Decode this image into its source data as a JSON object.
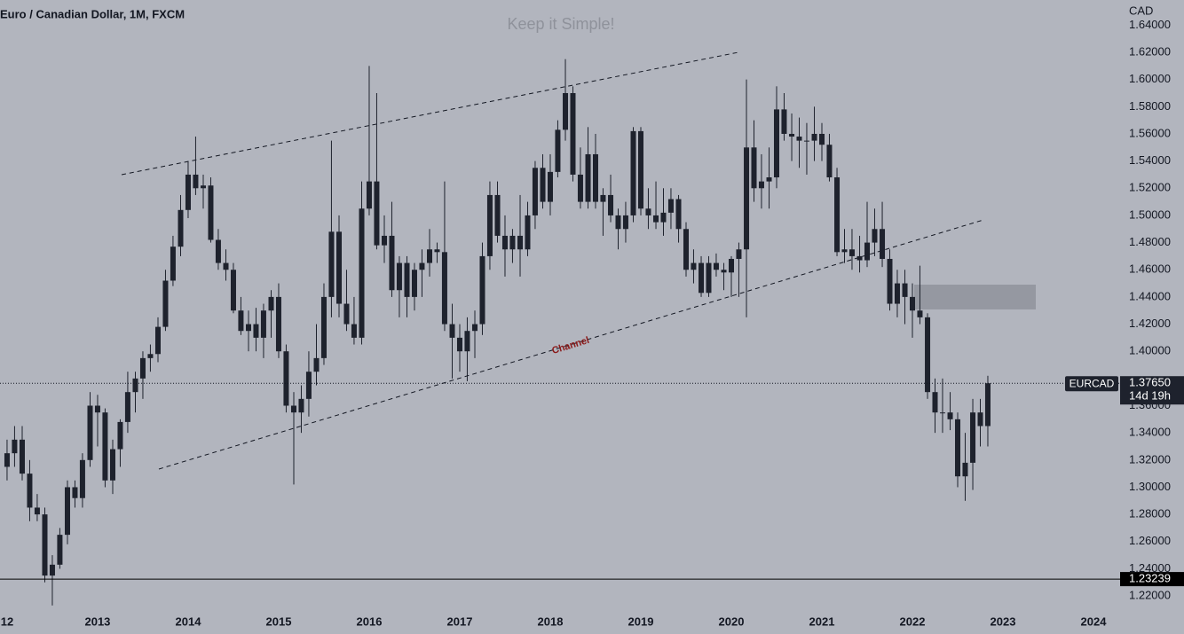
{
  "chart_data": {
    "type": "candlestick",
    "title": "Euro / Canadian Dollar, 1M, FXCM",
    "watermark": "Keep it Simple!",
    "currency": "CAD",
    "annotation": "Channel",
    "color": "#1e222d",
    "x": [
      2012,
      2012.083,
      2012.167,
      2012.25,
      2012.333,
      2012.417,
      2012.5,
      2012.583,
      2012.667,
      2012.75,
      2012.833,
      2012.917,
      2013,
      2013.083,
      2013.167,
      2013.25,
      2013.333,
      2013.417,
      2013.5,
      2013.583,
      2013.667,
      2013.75,
      2013.833,
      2013.917,
      2014,
      2014.083,
      2014.167,
      2014.25,
      2014.333,
      2014.417,
      2014.5,
      2014.583,
      2014.667,
      2014.75,
      2014.833,
      2014.917,
      2015,
      2015.083,
      2015.167,
      2015.25,
      2015.333,
      2015.417,
      2015.5,
      2015.583,
      2015.667,
      2015.75,
      2015.833,
      2015.917,
      2016,
      2016.083,
      2016.167,
      2016.25,
      2016.333,
      2016.417,
      2016.5,
      2016.583,
      2016.667,
      2016.75,
      2016.833,
      2016.917,
      2017,
      2017.083,
      2017.167,
      2017.25,
      2017.333,
      2017.417,
      2017.5,
      2017.583,
      2017.667,
      2017.75,
      2017.833,
      2017.917,
      2018,
      2018.083,
      2018.167,
      2018.25,
      2018.333,
      2018.417,
      2018.5,
      2018.583,
      2018.667,
      2018.75,
      2018.833,
      2018.917,
      2019,
      2019.083,
      2019.167,
      2019.25,
      2019.333,
      2019.417,
      2019.5,
      2019.583,
      2019.667,
      2019.75,
      2019.833,
      2019.917,
      2020,
      2020.083,
      2020.167,
      2020.25,
      2020.333,
      2020.417,
      2020.5,
      2020.583,
      2020.667,
      2020.75,
      2020.833,
      2020.917,
      2021,
      2021.083,
      2021.167,
      2021.25,
      2021.333,
      2021.417,
      2021.5,
      2021.583,
      2021.667,
      2021.75,
      2021.833,
      2021.917,
      2022,
      2022.083,
      2022.167,
      2022.25,
      2022.333,
      2022.417,
      2022.5,
      2022.583,
      2022.667,
      2022.75,
      2022.833
    ],
    "open": [
      1.315,
      1.325,
      1.335,
      1.31,
      1.285,
      1.28,
      1.235,
      1.243,
      1.265,
      1.3,
      1.292,
      1.32,
      1.36,
      1.355,
      1.305,
      1.328,
      1.348,
      1.37,
      1.38,
      1.395,
      1.398,
      1.418,
      1.452,
      1.477,
      1.504,
      1.53,
      1.52,
      1.522,
      1.482,
      1.465,
      1.46,
      1.43,
      1.415,
      1.42,
      1.41,
      1.43,
      1.44,
      1.4,
      1.36,
      1.355,
      1.365,
      1.385,
      1.395,
      1.44,
      1.488,
      1.435,
      1.42,
      1.41,
      1.505,
      1.525,
      1.478,
      1.485,
      1.445,
      1.465,
      1.44,
      1.46,
      1.465,
      1.475,
      1.473,
      1.42,
      1.41,
      1.4,
      1.415,
      1.42,
      1.47,
      1.515,
      1.485,
      1.475,
      1.485,
      1.475,
      1.5,
      1.535,
      1.51,
      1.532,
      1.563,
      1.59,
      1.53,
      1.51,
      1.545,
      1.51,
      1.515,
      1.5,
      1.49,
      1.5,
      1.562,
      1.505,
      1.5,
      1.495,
      1.502,
      1.512,
      1.49,
      1.46,
      1.465,
      1.443,
      1.465,
      1.46,
      1.458,
      1.468,
      1.475,
      1.55,
      1.52,
      1.525,
      1.528,
      1.578,
      1.56,
      1.558,
      1.555,
      1.555,
      1.56,
      1.552,
      1.528,
      1.473,
      1.475,
      1.47,
      1.467,
      1.48,
      1.49,
      1.468,
      1.435,
      1.45,
      1.44,
      1.43,
      1.425,
      1.37,
      1.355,
      1.355,
      1.35,
      1.308,
      1.318,
      1.355,
      1.345
    ],
    "high": [
      1.335,
      1.345,
      1.345,
      1.32,
      1.295,
      1.285,
      1.25,
      1.27,
      1.305,
      1.305,
      1.325,
      1.37,
      1.368,
      1.358,
      1.335,
      1.35,
      1.385,
      1.385,
      1.4,
      1.405,
      1.425,
      1.46,
      1.485,
      1.515,
      1.54,
      1.558,
      1.53,
      1.528,
      1.49,
      1.475,
      1.465,
      1.44,
      1.43,
      1.432,
      1.435,
      1.445,
      1.45,
      1.405,
      1.37,
      1.375,
      1.4,
      1.42,
      1.45,
      1.555,
      1.5,
      1.46,
      1.44,
      1.525,
      1.61,
      1.59,
      1.5,
      1.51,
      1.47,
      1.47,
      1.465,
      1.475,
      1.49,
      1.48,
      1.525,
      1.435,
      1.42,
      1.425,
      1.43,
      1.48,
      1.525,
      1.525,
      1.5,
      1.49,
      1.515,
      1.51,
      1.54,
      1.545,
      1.545,
      1.57,
      1.615,
      1.595,
      1.55,
      1.565,
      1.56,
      1.52,
      1.53,
      1.505,
      1.51,
      1.565,
      1.565,
      1.52,
      1.525,
      1.52,
      1.52,
      1.515,
      1.495,
      1.475,
      1.47,
      1.47,
      1.472,
      1.465,
      1.47,
      1.48,
      1.6,
      1.57,
      1.545,
      1.55,
      1.595,
      1.59,
      1.575,
      1.572,
      1.568,
      1.58,
      1.568,
      1.56,
      1.535,
      1.49,
      1.49,
      1.485,
      1.51,
      1.505,
      1.51,
      1.475,
      1.46,
      1.46,
      1.45,
      1.463,
      1.428,
      1.38,
      1.38,
      1.37,
      1.355,
      1.34,
      1.365,
      1.365,
      1.382
    ],
    "low": [
      1.305,
      1.315,
      1.305,
      1.275,
      1.275,
      1.23,
      1.213,
      1.24,
      1.258,
      1.285,
      1.285,
      1.315,
      1.33,
      1.3,
      1.295,
      1.315,
      1.34,
      1.355,
      1.365,
      1.385,
      1.392,
      1.415,
      1.448,
      1.47,
      1.498,
      1.515,
      1.505,
      1.48,
      1.46,
      1.452,
      1.428,
      1.412,
      1.4,
      1.4,
      1.395,
      1.41,
      1.395,
      1.355,
      1.302,
      1.34,
      1.352,
      1.375,
      1.39,
      1.425,
      1.425,
      1.415,
      1.405,
      1.405,
      1.5,
      1.475,
      1.465,
      1.44,
      1.425,
      1.425,
      1.43,
      1.44,
      1.455,
      1.465,
      1.415,
      1.38,
      1.385,
      1.378,
      1.395,
      1.412,
      1.46,
      1.48,
      1.455,
      1.465,
      1.455,
      1.47,
      1.49,
      1.505,
      1.5,
      1.528,
      1.555,
      1.525,
      1.505,
      1.505,
      1.505,
      1.485,
      1.495,
      1.475,
      1.48,
      1.495,
      1.5,
      1.49,
      1.49,
      1.485,
      1.49,
      1.48,
      1.455,
      1.45,
      1.44,
      1.44,
      1.455,
      1.445,
      1.44,
      1.44,
      1.425,
      1.51,
      1.505,
      1.505,
      1.52,
      1.555,
      1.54,
      1.535,
      1.53,
      1.54,
      1.54,
      1.525,
      1.47,
      1.465,
      1.46,
      1.458,
      1.462,
      1.47,
      1.462,
      1.43,
      1.425,
      1.42,
      1.41,
      1.42,
      1.365,
      1.34,
      1.34,
      1.342,
      1.3,
      1.29,
      1.298,
      1.33,
      1.33
    ],
    "close": [
      1.325,
      1.335,
      1.31,
      1.285,
      1.28,
      1.235,
      1.243,
      1.265,
      1.3,
      1.292,
      1.32,
      1.36,
      1.355,
      1.305,
      1.328,
      1.348,
      1.37,
      1.38,
      1.395,
      1.398,
      1.418,
      1.452,
      1.477,
      1.504,
      1.53,
      1.52,
      1.522,
      1.482,
      1.465,
      1.46,
      1.43,
      1.415,
      1.42,
      1.41,
      1.43,
      1.44,
      1.4,
      1.36,
      1.355,
      1.365,
      1.385,
      1.395,
      1.44,
      1.488,
      1.435,
      1.42,
      1.41,
      1.505,
      1.525,
      1.478,
      1.485,
      1.445,
      1.465,
      1.44,
      1.46,
      1.465,
      1.475,
      1.473,
      1.42,
      1.41,
      1.4,
      1.415,
      1.42,
      1.47,
      1.515,
      1.485,
      1.475,
      1.485,
      1.475,
      1.5,
      1.535,
      1.51,
      1.532,
      1.563,
      1.59,
      1.53,
      1.51,
      1.545,
      1.51,
      1.515,
      1.5,
      1.49,
      1.5,
      1.562,
      1.505,
      1.5,
      1.495,
      1.502,
      1.512,
      1.49,
      1.46,
      1.465,
      1.443,
      1.465,
      1.46,
      1.458,
      1.468,
      1.475,
      1.55,
      1.52,
      1.525,
      1.528,
      1.578,
      1.56,
      1.558,
      1.555,
      1.555,
      1.56,
      1.552,
      1.528,
      1.473,
      1.475,
      1.47,
      1.467,
      1.48,
      1.49,
      1.468,
      1.435,
      1.45,
      1.44,
      1.43,
      1.425,
      1.37,
      1.355,
      1.355,
      1.35,
      1.308,
      1.318,
      1.355,
      1.345,
      1.3765
    ],
    "xlim": [
      2011.922,
      2024.294
    ],
    "xticks": [
      {
        "value": 2012,
        "label": "12"
      },
      2013,
      2014,
      2015,
      2016,
      2017,
      2018,
      2019,
      2020,
      2021,
      2022,
      2023,
      2024
    ],
    "ylim": [
      1.192,
      1.6585
    ],
    "yticks": [
      {
        "value": 1.22,
        "label": "1.22000"
      },
      {
        "value": 1.24,
        "label": "1.24000"
      },
      {
        "value": 1.26,
        "label": "1.26000"
      },
      {
        "value": 1.28,
        "label": "1.28000"
      },
      {
        "value": 1.3,
        "label": "1.30000"
      },
      {
        "value": 1.32,
        "label": "1.32000"
      },
      {
        "value": 1.34,
        "label": "1.34000"
      },
      {
        "value": 1.36,
        "label": "1.36000"
      },
      {
        "value": 1.38,
        "label": "1.38000"
      },
      {
        "value": 1.4,
        "label": "1.40000"
      },
      {
        "value": 1.42,
        "label": "1.42000"
      },
      {
        "value": 1.44,
        "label": "1.44000"
      },
      {
        "value": 1.46,
        "label": "1.46000"
      },
      {
        "value": 1.48,
        "label": "1.48000"
      },
      {
        "value": 1.5,
        "label": "1.50000"
      },
      {
        "value": 1.52,
        "label": "1.52000"
      },
      {
        "value": 1.54,
        "label": "1.54000"
      },
      {
        "value": 1.56,
        "label": "1.56000"
      },
      {
        "value": 1.58,
        "label": "1.58000"
      },
      {
        "value": 1.6,
        "label": "1.60000"
      },
      {
        "value": 1.62,
        "label": "1.62000"
      },
      {
        "value": 1.64,
        "label": "1.64000"
      }
    ],
    "grid": false,
    "last_price": {
      "symbol": "EURCAD",
      "value": 1.3765,
      "label": "1.37650",
      "countdown": "14d 19h"
    },
    "horizontal_line": 1.23239
  }
}
